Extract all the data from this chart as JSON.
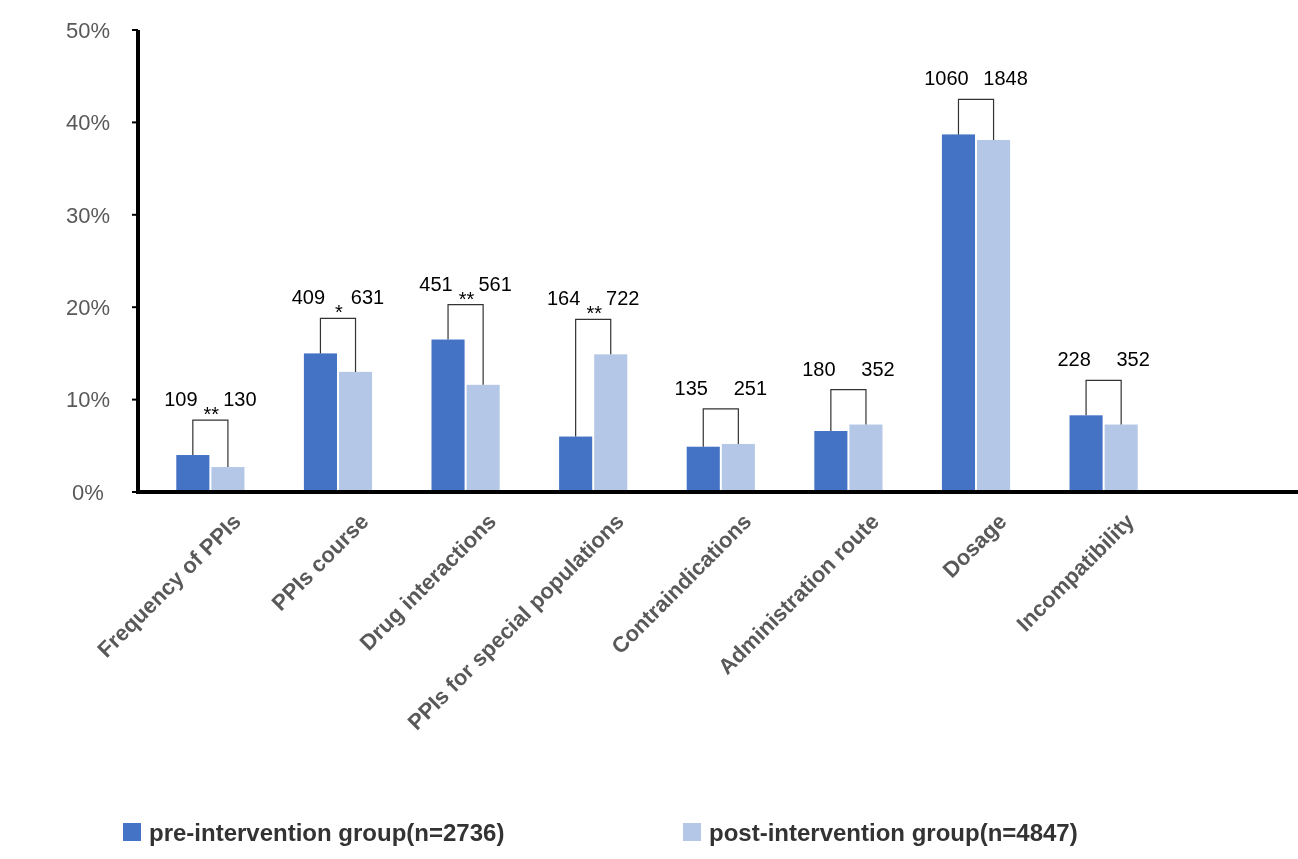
{
  "chart_data": {
    "type": "bar",
    "categories": [
      "Frequency of PPIs",
      "PPIs course",
      "Drug interactions",
      "PPIs for special populations",
      "Contraindications",
      "Administration route",
      "Dosage",
      "Incompatibility"
    ],
    "series": [
      {
        "name": "pre-intervention group(n=2736)",
        "color": "#4472c4",
        "values": [
          4.0,
          15.0,
          16.5,
          6.0,
          4.9,
          6.6,
          38.7,
          8.3
        ]
      },
      {
        "name": "post-intervention group(n=4847)",
        "color": "#b4c7e7",
        "values": [
          2.7,
          13.0,
          11.6,
          14.9,
          5.2,
          7.3,
          38.1,
          7.3
        ]
      }
    ],
    "ylim": [
      0,
      50
    ],
    "yticks": [
      {
        "value": 0,
        "label": "0%"
      },
      {
        "value": 10,
        "label": "10%"
      },
      {
        "value": 20,
        "label": "20%"
      },
      {
        "value": 30,
        "label": "30%"
      },
      {
        "value": 40,
        "label": "40%"
      },
      {
        "value": 50,
        "label": "50%"
      }
    ],
    "annotations": [
      "109",
      "130",
      "409",
      "631",
      "451",
      "561",
      "164",
      "722",
      "135",
      "251",
      "180",
      "352",
      "1060",
      "1848",
      "228",
      "352",
      "**",
      "*",
      "**",
      "**"
    ],
    "grid": false,
    "legend": "bottom"
  }
}
